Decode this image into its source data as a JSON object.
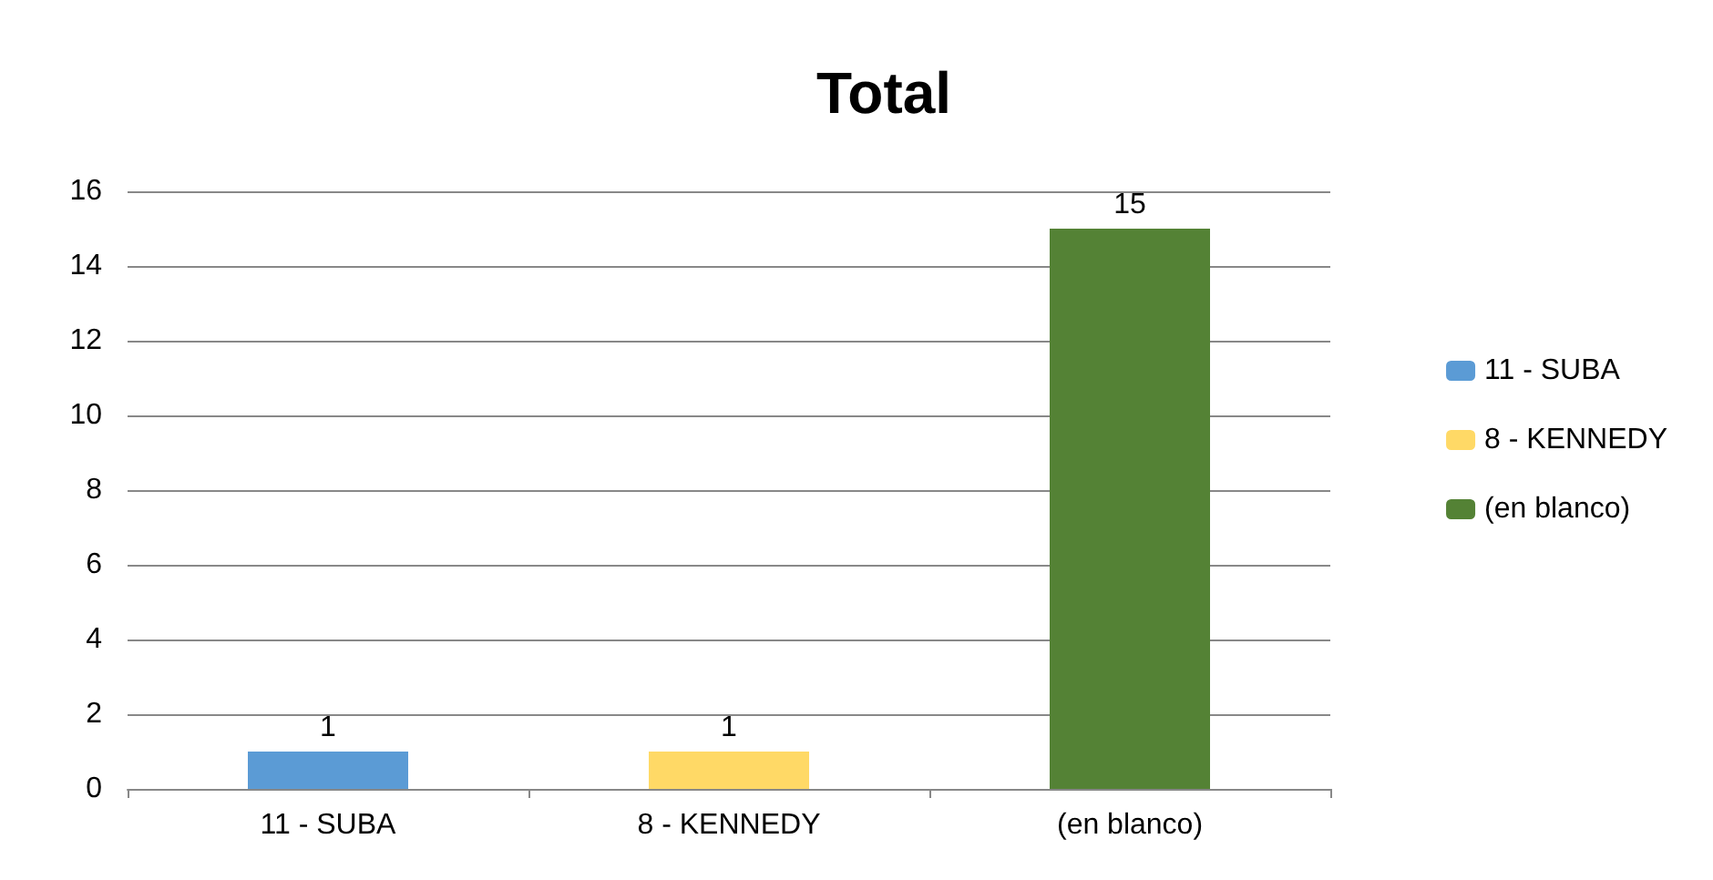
{
  "chart_data": {
    "type": "bar",
    "title": "Total",
    "categories": [
      "11 - SUBA",
      "8 - KENNEDY",
      "(en blanco)"
    ],
    "series": [
      {
        "name": "11 - SUBA",
        "color": "#5b9bd5",
        "values": [
          1,
          null,
          null
        ]
      },
      {
        "name": "8 - KENNEDY",
        "color": "#ffd966",
        "values": [
          null,
          1,
          null
        ]
      },
      {
        "name": "(en blanco)",
        "color": "#548235",
        "values": [
          null,
          null,
          15
        ]
      }
    ],
    "stacked": true,
    "ylim": [
      0,
      16
    ],
    "yticks": [
      0,
      2,
      4,
      6,
      8,
      10,
      12,
      14,
      16
    ],
    "grid": "y",
    "legend": "right",
    "data_labels": true
  }
}
